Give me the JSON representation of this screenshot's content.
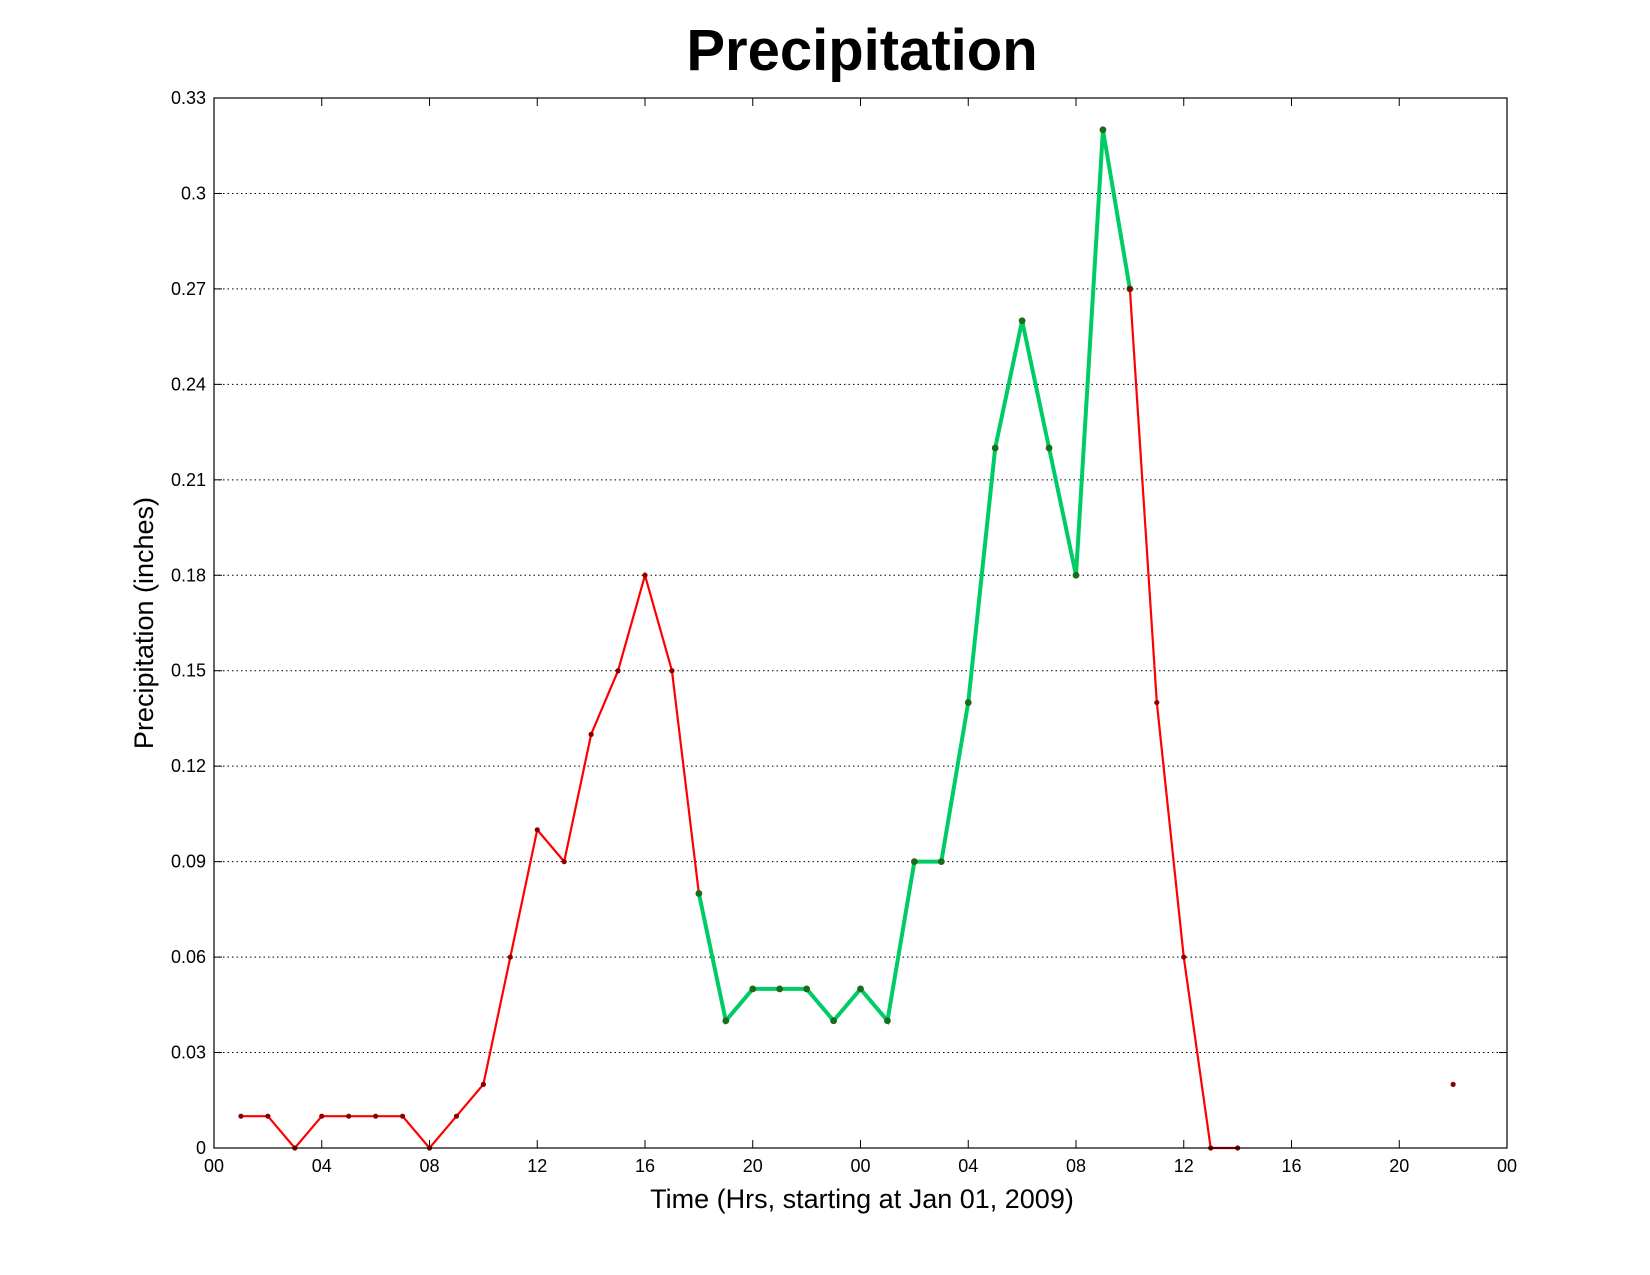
{
  "chart_data": {
    "type": "line",
    "title": "Precipitation",
    "xlabel": "Time (Hrs, starting at Jan 01, 2009)",
    "ylabel": "Precipitation (inches)",
    "x_unit": "hours",
    "xlim": [
      0,
      48
    ],
    "ylim": [
      0,
      0.33
    ],
    "x_ticks": [
      0,
      4,
      8,
      12,
      16,
      20,
      24,
      28,
      32,
      36,
      40,
      44,
      48
    ],
    "x_tick_labels": [
      "00",
      "04",
      "08",
      "12",
      "16",
      "20",
      "00",
      "04",
      "08",
      "12",
      "16",
      "20",
      "00"
    ],
    "y_ticks": [
      0,
      0.03,
      0.06,
      0.09,
      0.12,
      0.15,
      0.18,
      0.21,
      0.24,
      0.27,
      0.3,
      0.33
    ],
    "y_tick_labels": [
      "0",
      "0.03",
      "0.06",
      "0.09",
      "0.12",
      "0.15",
      "0.18",
      "0.21",
      "0.24",
      "0.27",
      "0.3",
      "0.33"
    ],
    "grid": "horizontal dotted",
    "legend": "none",
    "series": [
      {
        "color": "#ff0000",
        "marker_color": "#8b0000",
        "line_width": "thin",
        "points": [
          [
            1,
            0.01
          ],
          [
            2,
            0.01
          ],
          [
            3,
            0.0
          ],
          [
            4,
            0.01
          ],
          [
            5,
            0.01
          ],
          [
            6,
            0.01
          ],
          [
            7,
            0.01
          ],
          [
            8,
            0.0
          ],
          [
            9,
            0.01
          ],
          [
            10,
            0.02
          ],
          [
            11,
            0.06
          ],
          [
            12,
            0.1
          ],
          [
            13,
            0.09
          ],
          [
            14,
            0.13
          ],
          [
            15,
            0.15
          ],
          [
            16,
            0.18
          ],
          [
            17,
            0.15
          ],
          [
            18,
            0.08
          ]
        ]
      },
      {
        "color": "#00cc66",
        "marker_color": "#1a6b1a",
        "line_width": "thick",
        "points": [
          [
            18,
            0.08
          ],
          [
            19,
            0.04
          ],
          [
            20,
            0.05
          ],
          [
            21,
            0.05
          ],
          [
            22,
            0.05
          ],
          [
            23,
            0.04
          ],
          [
            24,
            0.05
          ],
          [
            25,
            0.04
          ],
          [
            26,
            0.09
          ],
          [
            27,
            0.09
          ],
          [
            28,
            0.14
          ],
          [
            29,
            0.22
          ],
          [
            30,
            0.26
          ],
          [
            31,
            0.22
          ],
          [
            32,
            0.18
          ],
          [
            33,
            0.32
          ],
          [
            34,
            0.27
          ]
        ]
      },
      {
        "color": "#ff0000",
        "marker_color": "#8b0000",
        "line_width": "thin",
        "points": [
          [
            34,
            0.27
          ],
          [
            35,
            0.14
          ],
          [
            36,
            0.06
          ],
          [
            37,
            0.0
          ],
          [
            38,
            0.0
          ]
        ]
      },
      {
        "color": "#ff0000",
        "marker_color": "#8b0000",
        "line_width": "none",
        "points": [
          [
            46,
            0.02
          ]
        ]
      }
    ]
  }
}
